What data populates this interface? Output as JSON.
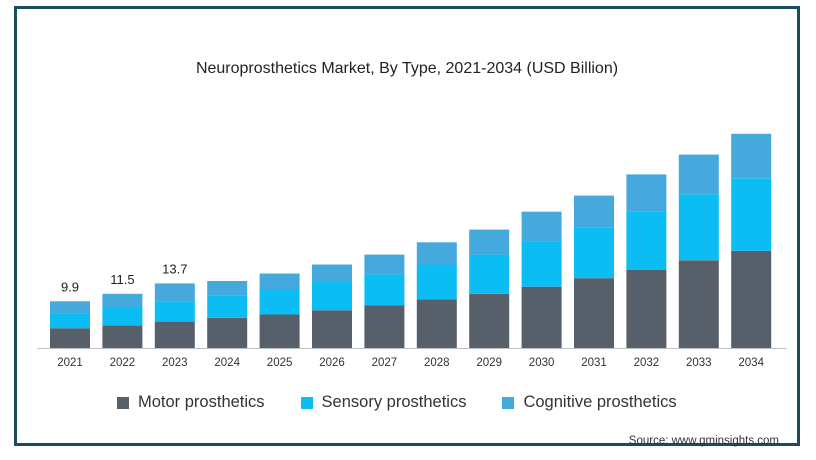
{
  "chart_data": {
    "type": "bar",
    "stacked": true,
    "title": "Neuroprosthetics Market, By Type, 2021-2034 (USD Billion)",
    "xlabel": "",
    "ylabel": "",
    "ylim": [
      0,
      46
    ],
    "grid": false,
    "legend_position": "bottom",
    "categories": [
      "2021",
      "2022",
      "2023",
      "2024",
      "2025",
      "2026",
      "2027",
      "2028",
      "2029",
      "2030",
      "2031",
      "2032",
      "2033",
      "2034"
    ],
    "series": [
      {
        "name": "Motor prosthetics",
        "color": "#575f6a",
        "values": [
          4.2,
          4.8,
          5.6,
          6.4,
          7.1,
          8.0,
          9.0,
          10.3,
          11.5,
          13.0,
          14.8,
          16.6,
          18.6,
          20.6
        ]
      },
      {
        "name": "Sensory prosthetics",
        "color": "#0bbdf3",
        "values": [
          3.1,
          3.8,
          4.3,
          4.8,
          5.3,
          6.0,
          6.6,
          7.4,
          8.3,
          9.6,
          10.7,
          12.4,
          14.0,
          15.4
        ]
      },
      {
        "name": "Cognitive prosthetics",
        "color": "#45a9de",
        "values": [
          2.6,
          2.9,
          3.8,
          3.0,
          3.4,
          3.7,
          4.2,
          4.7,
          5.3,
          6.3,
          6.8,
          7.8,
          8.4,
          9.4
        ]
      }
    ],
    "data_labels": [
      "9.9",
      "11.5",
      "13.7"
    ]
  },
  "source_text": "Source: www.gminsights.com"
}
